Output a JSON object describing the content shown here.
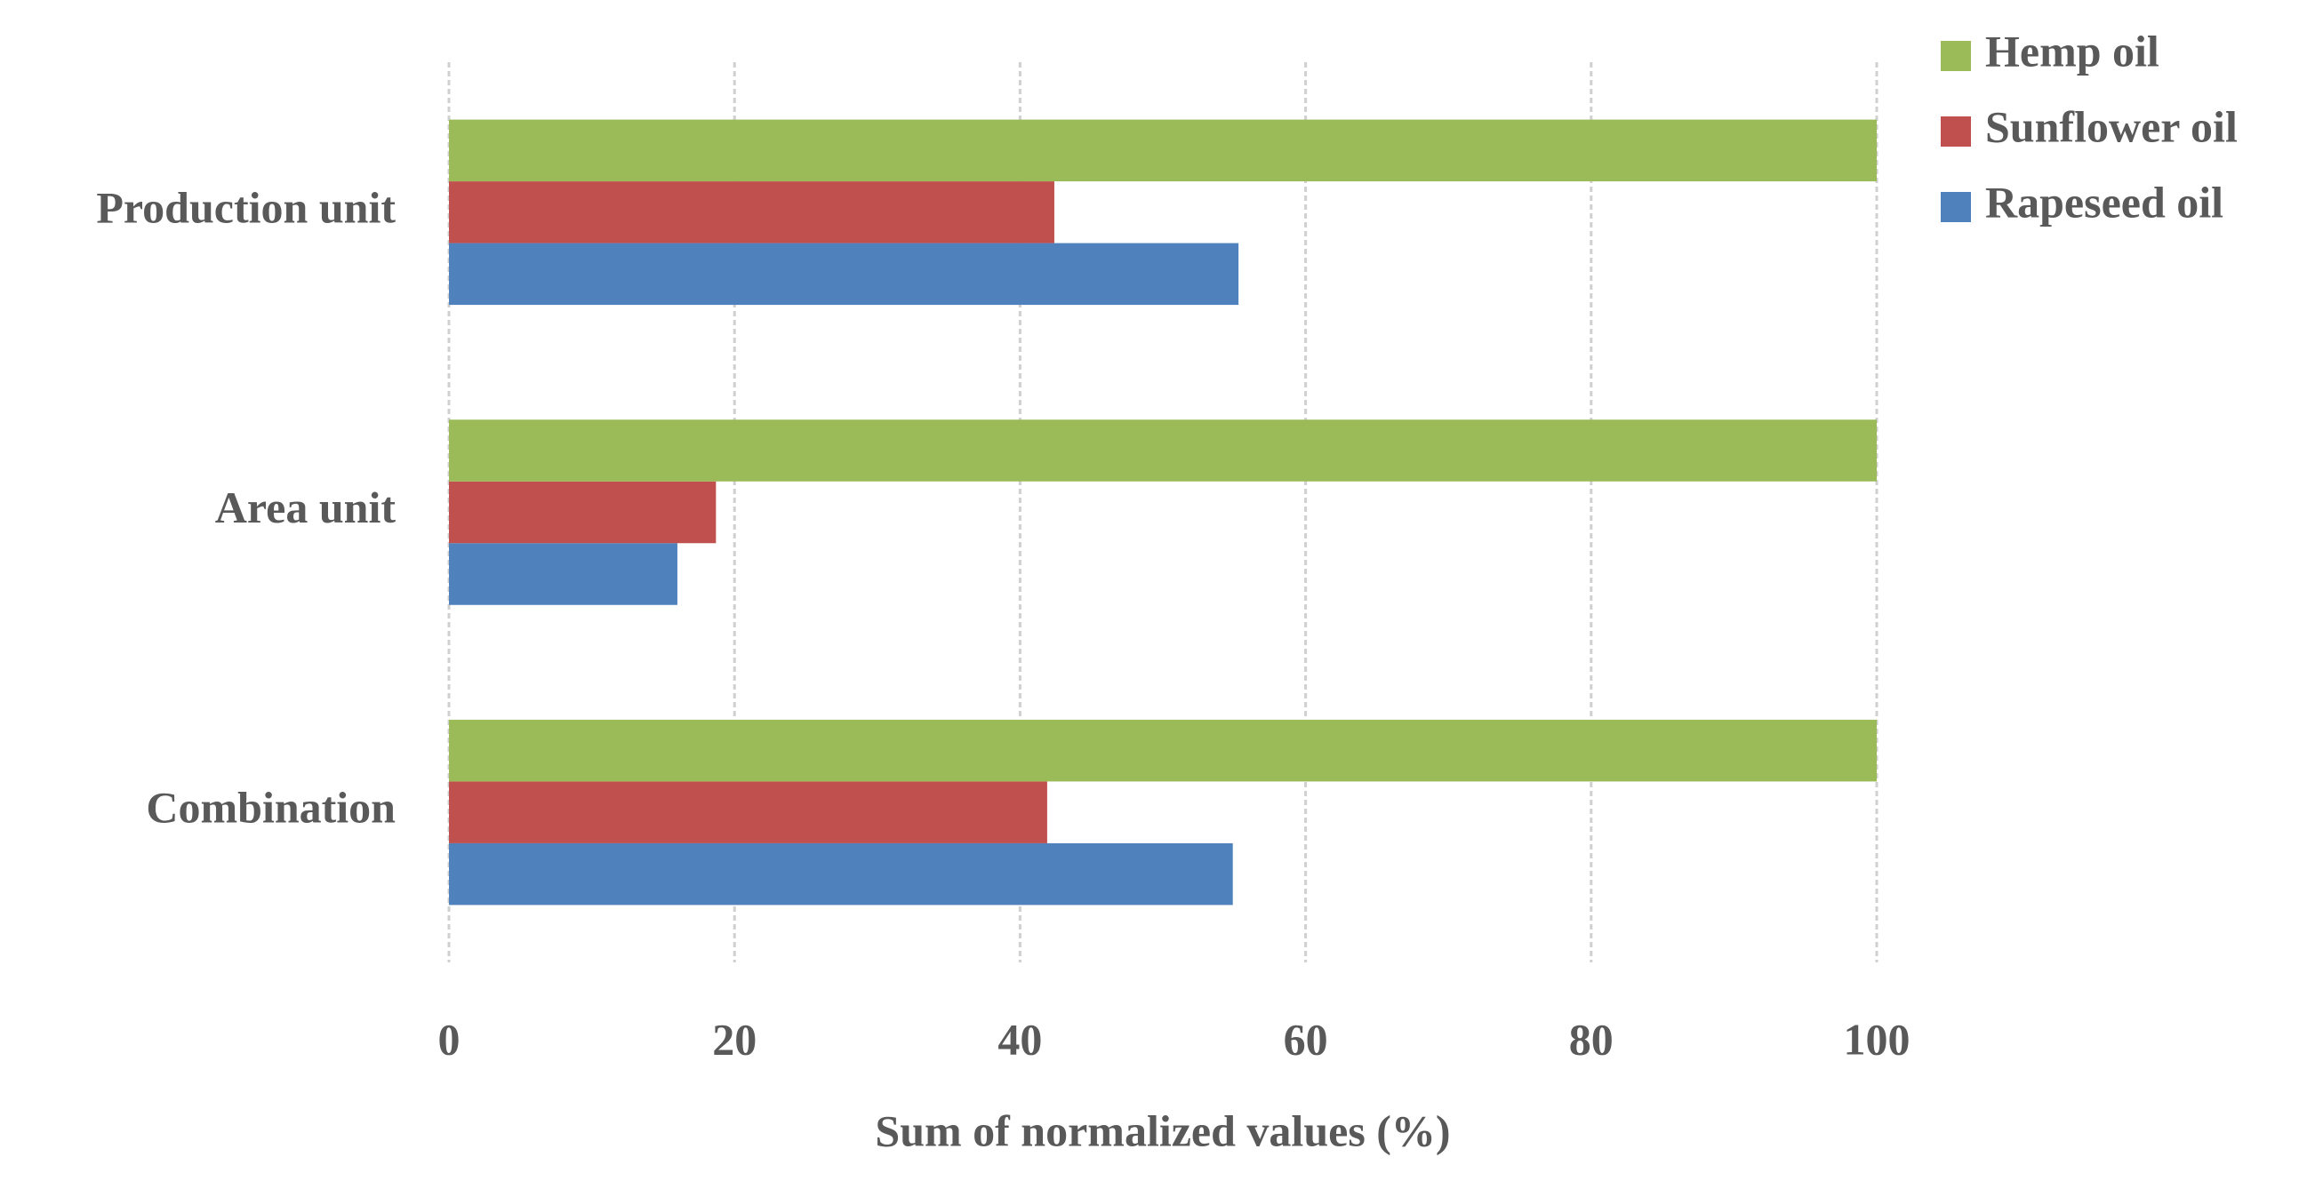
{
  "chart_data": {
    "type": "hbar",
    "categories": [
      "Production unit",
      "Area unit",
      "Combination"
    ],
    "series": [
      {
        "name": "Rapeseed oil",
        "color": "#4f81bd",
        "values": [
          55.3,
          16.0,
          54.9
        ]
      },
      {
        "name": "Sunflower oil",
        "color": "#c0504d",
        "values": [
          42.4,
          18.7,
          41.9
        ]
      },
      {
        "name": "Hemp oil",
        "color": "#9bbb59",
        "values": [
          100,
          100,
          100
        ]
      }
    ],
    "xlabel": "Sum of normalized values (%)",
    "xlim": [
      0,
      100
    ],
    "xticks": [
      0,
      20,
      40,
      60,
      80,
      100
    ],
    "grid": true,
    "legend": "top-right"
  }
}
